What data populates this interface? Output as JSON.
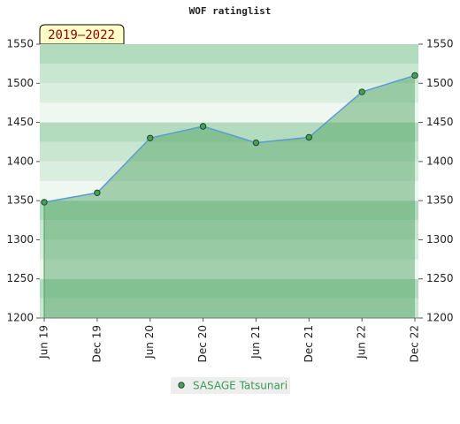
{
  "chart_data": {
    "type": "area",
    "title": "WOF ratinglist",
    "annotation": "2019–2022",
    "categories": [
      "Jun 19",
      "Dec 19",
      "Jun 20",
      "Dec 20",
      "Jun 21",
      "Dec 21",
      "Jun 22",
      "Dec 22"
    ],
    "series": [
      {
        "name": "SASAGE Tatsunari",
        "color": "#4a9e5c",
        "line_color": "#5b9bd5",
        "values": [
          1348,
          1360,
          1430,
          1445,
          1424,
          1431,
          1489,
          1510
        ]
      }
    ],
    "ylim": [
      1200,
      1550
    ],
    "yticks": [
      1200,
      1250,
      1300,
      1350,
      1400,
      1450,
      1500,
      1550
    ],
    "right_axis": true,
    "legend": "bottom"
  }
}
